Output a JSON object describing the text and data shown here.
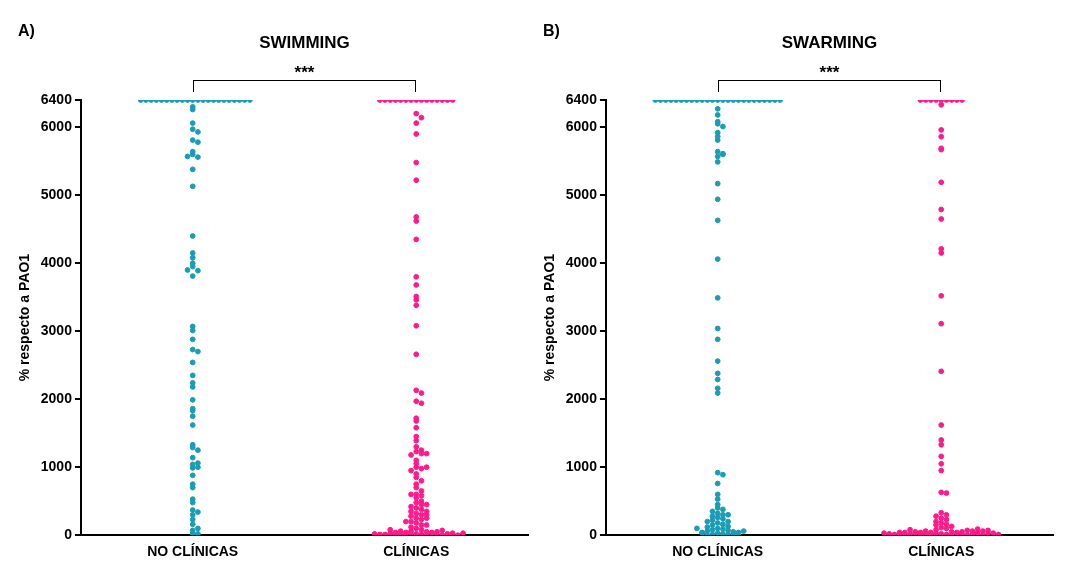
{
  "chart_data": [
    {
      "type": "scatter",
      "title": "SWIMMING",
      "ylabel": "% respecto a PAO1",
      "categories": [
        "NO CLÍNICAS",
        "CLÍNICAS"
      ],
      "ylim": [
        0,
        6400
      ],
      "yticks": [
        0,
        1000,
        2000,
        3000,
        4000,
        5000,
        6000,
        6400
      ],
      "grid": false,
      "legend": false,
      "marker": "circle",
      "annotations": [
        "A)",
        "***"
      ],
      "series": [
        {
          "color": "#1a9db4",
          "x": [
            "NO CLÍNICAS",
            "NO CLÍNICAS",
            "NO CLÍNICAS",
            "NO CLÍNICAS",
            "NO CLÍNICAS",
            "NO CLÍNICAS",
            "NO CLÍNICAS",
            "NO CLÍNICAS",
            "NO CLÍNICAS",
            "NO CLÍNICAS",
            "NO CLÍNICAS",
            "NO CLÍNICAS",
            "NO CLÍNICAS",
            "NO CLÍNICAS",
            "NO CLÍNICAS",
            "NO CLÍNICAS",
            "NO CLÍNICAS",
            "NO CLÍNICAS",
            "NO CLÍNICAS",
            "NO CLÍNICAS",
            "NO CLÍNICAS",
            "NO CLÍNICAS",
            "NO CLÍNICAS",
            "NO CLÍNICAS",
            "NO CLÍNICAS",
            "NO CLÍNICAS",
            "NO CLÍNICAS",
            "NO CLÍNICAS",
            "NO CLÍNICAS",
            "NO CLÍNICAS",
            "NO CLÍNICAS",
            "NO CLÍNICAS",
            "NO CLÍNICAS",
            "NO CLÍNICAS",
            "NO CLÍNICAS",
            "NO CLÍNICAS",
            "NO CLÍNICAS",
            "NO CLÍNICAS",
            "NO CLÍNICAS",
            "NO CLÍNICAS",
            "NO CLÍNICAS",
            "NO CLÍNICAS",
            "NO CLÍNICAS",
            "NO CLÍNICAS",
            "NO CLÍNICAS",
            "NO CLÍNICAS",
            "NO CLÍNICAS",
            "NO CLÍNICAS",
            "NO CLÍNICAS",
            "NO CLÍNICAS",
            "NO CLÍNICAS",
            "NO CLÍNICAS",
            "NO CLÍNICAS",
            "NO CLÍNICAS",
            "NO CLÍNICAS",
            "NO CLÍNICAS",
            "NO CLÍNICAS",
            "NO CLÍNICAS",
            "NO CLÍNICAS",
            "NO CLÍNICAS",
            "NO CLÍNICAS",
            "NO CLÍNICAS",
            "NO CLÍNICAS",
            "NO CLÍNICAS",
            "NO CLÍNICAS",
            "NO CLÍNICAS",
            "NO CLÍNICAS",
            "NO CLÍNICAS",
            "NO CLÍNICAS",
            "NO CLÍNICAS",
            "NO CLÍNICAS",
            "NO CLÍNICAS",
            "NO CLÍNICAS",
            "NO CLÍNICAS",
            "NO CLÍNICAS",
            "NO CLÍNICAS",
            "NO CLÍNICAS",
            "NO CLÍNICAS",
            "NO CLÍNICAS"
          ],
          "values": [
            6400,
            6400,
            6400,
            6400,
            6400,
            6400,
            6400,
            6400,
            6400,
            6400,
            6400,
            6400,
            6400,
            6400,
            6400,
            6400,
            6400,
            6400,
            6400,
            6400,
            6400,
            6400,
            6300,
            6260,
            5970,
            5930,
            5810,
            5780,
            5640,
            5600,
            5560,
            5380,
            5130,
            4400,
            4150,
            4080,
            3950,
            3890,
            3810,
            3070,
            3010,
            2880,
            2730,
            2700,
            2540,
            2350,
            2240,
            2180,
            1990,
            1860,
            1830,
            1750,
            1620,
            1330,
            1290,
            1140,
            1040,
            990,
            880,
            750,
            700,
            530,
            480,
            370,
            340,
            230,
            160,
            70,
            30,
            100,
            300,
            1060,
            1250,
            4000,
            5570,
            6060,
            3900,
            20,
            1000
          ]
        },
        {
          "color": "#ff1a8c",
          "x": [
            "CLÍNICAS",
            "CLÍNICAS",
            "CLÍNICAS",
            "CLÍNICAS",
            "CLÍNICAS",
            "CLÍNICAS",
            "CLÍNICAS",
            "CLÍNICAS",
            "CLÍNICAS",
            "CLÍNICAS",
            "CLÍNICAS",
            "CLÍNICAS",
            "CLÍNICAS",
            "CLÍNICAS",
            "CLÍNICAS",
            "CLÍNICAS",
            "CLÍNICAS",
            "CLÍNICAS",
            "CLÍNICAS",
            "CLÍNICAS",
            "CLÍNICAS",
            "CLÍNICAS",
            "CLÍNICAS",
            "CLÍNICAS",
            "CLÍNICAS",
            "CLÍNICAS",
            "CLÍNICAS",
            "CLÍNICAS",
            "CLÍNICAS",
            "CLÍNICAS",
            "CLÍNICAS",
            "CLÍNICAS",
            "CLÍNICAS",
            "CLÍNICAS",
            "CLÍNICAS",
            "CLÍNICAS",
            "CLÍNICAS",
            "CLÍNICAS",
            "CLÍNICAS",
            "CLÍNICAS",
            "CLÍNICAS",
            "CLÍNICAS",
            "CLÍNICAS",
            "CLÍNICAS",
            "CLÍNICAS",
            "CLÍNICAS",
            "CLÍNICAS",
            "CLÍNICAS",
            "CLÍNICAS",
            "CLÍNICAS",
            "CLÍNICAS",
            "CLÍNICAS",
            "CLÍNICAS",
            "CLÍNICAS",
            "CLÍNICAS",
            "CLÍNICAS",
            "CLÍNICAS",
            "CLÍNICAS",
            "CLÍNICAS",
            "CLÍNICAS",
            "CLÍNICAS",
            "CLÍNICAS",
            "CLÍNICAS",
            "CLÍNICAS",
            "CLÍNICAS",
            "CLÍNICAS",
            "CLÍNICAS",
            "CLÍNICAS",
            "CLÍNICAS",
            "CLÍNICAS",
            "CLÍNICAS",
            "CLÍNICAS",
            "CLÍNICAS",
            "CLÍNICAS",
            "CLÍNICAS",
            "CLÍNICAS",
            "CLÍNICAS",
            "CLÍNICAS",
            "CLÍNICAS",
            "CLÍNICAS",
            "CLÍNICAS",
            "CLÍNICAS",
            "CLÍNICAS",
            "CLÍNICAS",
            "CLÍNICAS",
            "CLÍNICAS",
            "CLÍNICAS",
            "CLÍNICAS",
            "CLÍNICAS",
            "CLÍNICAS",
            "CLÍNICAS",
            "CLÍNICAS",
            "CLÍNICAS",
            "CLÍNICAS",
            "CLÍNICAS",
            "CLÍNICAS",
            "CLÍNICAS",
            "CLÍNICAS",
            "CLÍNICAS",
            "CLÍNICAS",
            "CLÍNICAS",
            "CLÍNICAS",
            "CLÍNICAS",
            "CLÍNICAS",
            "CLÍNICAS",
            "CLÍNICAS",
            "CLÍNICAS",
            "CLÍNICAS",
            "CLÍNICAS",
            "CLÍNICAS",
            "CLÍNICAS",
            "CLÍNICAS",
            "CLÍNICAS"
          ],
          "values": [
            6400,
            6400,
            6400,
            6400,
            6400,
            6400,
            6400,
            6400,
            6400,
            6400,
            6400,
            6400,
            6400,
            6400,
            6400,
            6200,
            6140,
            6060,
            5900,
            5480,
            5220,
            4680,
            4620,
            4350,
            3800,
            3680,
            3510,
            3460,
            3380,
            3080,
            2660,
            2130,
            2090,
            1970,
            1940,
            1720,
            1680,
            1580,
            1450,
            1390,
            1300,
            1250,
            1230,
            1200,
            1180,
            1100,
            1050,
            1000,
            980,
            950,
            900,
            850,
            800,
            750,
            700,
            650,
            600,
            580,
            550,
            500,
            480,
            450,
            420,
            400,
            380,
            350,
            320,
            300,
            280,
            250,
            230,
            200,
            180,
            150,
            120,
            100,
            80,
            60,
            20,
            10,
            30,
            0,
            50,
            40,
            20,
            30,
            10,
            40,
            60,
            10,
            20,
            0,
            30,
            50,
            20,
            10,
            30,
            10,
            40,
            0,
            20,
            30,
            70,
            250,
            300,
            600,
            1000,
            1200,
            350,
            200,
            150,
            450,
            80
          ]
        }
      ]
    },
    {
      "type": "scatter",
      "title": "SWARMING",
      "ylabel": "% respecto a PAO1",
      "categories": [
        "NO CLÍNICAS",
        "CLÍNICAS"
      ],
      "ylim": [
        0,
        6400
      ],
      "yticks": [
        0,
        1000,
        2000,
        3000,
        4000,
        5000,
        6000,
        6400
      ],
      "grid": false,
      "legend": false,
      "marker": "circle",
      "annotations": [
        "B)",
        "***"
      ],
      "series": [
        {
          "color": "#1a9db4",
          "x": [
            "NO CLÍNICAS",
            "NO CLÍNICAS",
            "NO CLÍNICAS",
            "NO CLÍNICAS",
            "NO CLÍNICAS",
            "NO CLÍNICAS",
            "NO CLÍNICAS",
            "NO CLÍNICAS",
            "NO CLÍNICAS",
            "NO CLÍNICAS",
            "NO CLÍNICAS",
            "NO CLÍNICAS",
            "NO CLÍNICAS",
            "NO CLÍNICAS",
            "NO CLÍNICAS",
            "NO CLÍNICAS",
            "NO CLÍNICAS",
            "NO CLÍNICAS",
            "NO CLÍNICAS",
            "NO CLÍNICAS",
            "NO CLÍNICAS",
            "NO CLÍNICAS",
            "NO CLÍNICAS",
            "NO CLÍNICAS",
            "NO CLÍNICAS",
            "NO CLÍNICAS",
            "NO CLÍNICAS",
            "NO CLÍNICAS",
            "NO CLÍNICAS",
            "NO CLÍNICAS",
            "NO CLÍNICAS",
            "NO CLÍNICAS",
            "NO CLÍNICAS",
            "NO CLÍNICAS",
            "NO CLÍNICAS",
            "NO CLÍNICAS",
            "NO CLÍNICAS",
            "NO CLÍNICAS",
            "NO CLÍNICAS",
            "NO CLÍNICAS",
            "NO CLÍNICAS",
            "NO CLÍNICAS",
            "NO CLÍNICAS",
            "NO CLÍNICAS",
            "NO CLÍNICAS",
            "NO CLÍNICAS",
            "NO CLÍNICAS",
            "NO CLÍNICAS",
            "NO CLÍNICAS",
            "NO CLÍNICAS",
            "NO CLÍNICAS",
            "NO CLÍNICAS",
            "NO CLÍNICAS",
            "NO CLÍNICAS",
            "NO CLÍNICAS",
            "NO CLÍNICAS",
            "NO CLÍNICAS",
            "NO CLÍNICAS",
            "NO CLÍNICAS",
            "NO CLÍNICAS",
            "NO CLÍNICAS",
            "NO CLÍNICAS",
            "NO CLÍNICAS",
            "NO CLÍNICAS",
            "NO CLÍNICAS",
            "NO CLÍNICAS",
            "NO CLÍNICAS",
            "NO CLÍNICAS",
            "NO CLÍNICAS",
            "NO CLÍNICAS",
            "NO CLÍNICAS",
            "NO CLÍNICAS",
            "NO CLÍNICAS",
            "NO CLÍNICAS",
            "NO CLÍNICAS",
            "NO CLÍNICAS",
            "NO CLÍNICAS",
            "NO CLÍNICAS",
            "NO CLÍNICAS",
            "NO CLÍNICAS",
            "NO CLÍNICAS",
            "NO CLÍNICAS",
            "NO CLÍNICAS",
            "NO CLÍNICAS",
            "NO CLÍNICAS",
            "NO CLÍNICAS",
            "NO CLÍNICAS",
            "NO CLÍNICAS",
            "NO CLÍNICAS",
            "NO CLÍNICAS",
            "NO CLÍNICAS"
          ],
          "values": [
            6400,
            6400,
            6400,
            6400,
            6400,
            6400,
            6400,
            6400,
            6400,
            6400,
            6400,
            6400,
            6400,
            6400,
            6400,
            6400,
            6400,
            6400,
            6400,
            6400,
            6400,
            6400,
            6400,
            6400,
            6400,
            6270,
            6180,
            6080,
            6050,
            6010,
            5920,
            5860,
            5810,
            5640,
            5610,
            5570,
            5490,
            5170,
            4940,
            4630,
            4060,
            3490,
            3040,
            2880,
            2560,
            2380,
            2290,
            2160,
            2090,
            920,
            890,
            760,
            600,
            530,
            450,
            400,
            380,
            350,
            320,
            300,
            280,
            260,
            240,
            220,
            200,
            180,
            160,
            150,
            130,
            120,
            100,
            90,
            80,
            70,
            60,
            50,
            40,
            30,
            20,
            10,
            10,
            0,
            20,
            30,
            40,
            200,
            100,
            60,
            300,
            30,
            5600
          ]
        },
        {
          "color": "#ff1a8c",
          "x": [
            "CLÍNICAS",
            "CLÍNICAS",
            "CLÍNICAS",
            "CLÍNICAS",
            "CLÍNICAS",
            "CLÍNICAS",
            "CLÍNICAS",
            "CLÍNICAS",
            "CLÍNICAS",
            "CLÍNICAS",
            "CLÍNICAS",
            "CLÍNICAS",
            "CLÍNICAS",
            "CLÍNICAS",
            "CLÍNICAS",
            "CLÍNICAS",
            "CLÍNICAS",
            "CLÍNICAS",
            "CLÍNICAS",
            "CLÍNICAS",
            "CLÍNICAS",
            "CLÍNICAS",
            "CLÍNICAS",
            "CLÍNICAS",
            "CLÍNICAS",
            "CLÍNICAS",
            "CLÍNICAS",
            "CLÍNICAS",
            "CLÍNICAS",
            "CLÍNICAS",
            "CLÍNICAS",
            "CLÍNICAS",
            "CLÍNICAS",
            "CLÍNICAS",
            "CLÍNICAS",
            "CLÍNICAS",
            "CLÍNICAS",
            "CLÍNICAS",
            "CLÍNICAS",
            "CLÍNICAS",
            "CLÍNICAS",
            "CLÍNICAS",
            "CLÍNICAS",
            "CLÍNICAS",
            "CLÍNICAS",
            "CLÍNICAS",
            "CLÍNICAS",
            "CLÍNICAS",
            "CLÍNICAS",
            "CLÍNICAS",
            "CLÍNICAS",
            "CLÍNICAS",
            "CLÍNICAS",
            "CLÍNICAS",
            "CLÍNICAS",
            "CLÍNICAS",
            "CLÍNICAS",
            "CLÍNICAS",
            "CLÍNICAS",
            "CLÍNICAS",
            "CLÍNICAS",
            "CLÍNICAS",
            "CLÍNICAS",
            "CLÍNICAS",
            "CLÍNICAS",
            "CLÍNICAS",
            "CLÍNICAS",
            "CLÍNICAS",
            "CLÍNICAS",
            "CLÍNICAS",
            "CLÍNICAS",
            "CLÍNICAS",
            "CLÍNICAS",
            "CLÍNICAS",
            "CLÍNICAS",
            "CLÍNICAS",
            "CLÍNICAS",
            "CLÍNICAS",
            "CLÍNICAS",
            "CLÍNICAS",
            "CLÍNICAS"
          ],
          "values": [
            6400,
            6400,
            6400,
            6400,
            6400,
            6400,
            6400,
            6400,
            6400,
            6330,
            5960,
            5860,
            5690,
            5670,
            5190,
            4790,
            4650,
            4210,
            4150,
            3520,
            3110,
            2410,
            1620,
            1400,
            1330,
            1160,
            1050,
            950,
            630,
            620,
            330,
            300,
            280,
            250,
            230,
            200,
            180,
            160,
            150,
            130,
            110,
            100,
            80,
            20,
            10,
            30,
            0,
            50,
            40,
            20,
            30,
            10,
            40,
            60,
            10,
            20,
            0,
            30,
            50,
            20,
            10,
            30,
            10,
            40,
            0,
            20,
            30,
            70,
            50,
            10,
            60,
            80,
            90,
            30,
            20,
            40,
            10,
            30,
            60,
            40,
            70
          ]
        }
      ]
    }
  ]
}
